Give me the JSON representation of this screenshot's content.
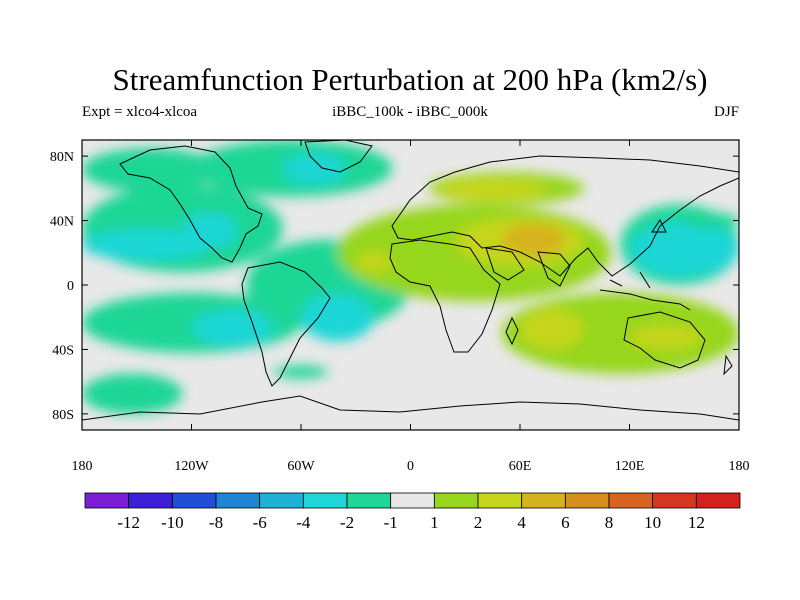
{
  "chart_data": {
    "type": "heatmap",
    "title": "Streamfunction Perturbation at 200 hPa (km2/s)",
    "left_label": "Expt = xlco4-xlcoa",
    "center_label": "iBBC_100k - iBBC_000k",
    "right_label": "DJF",
    "projection": "cylindrical-equidistant",
    "xlim": [
      -180,
      180
    ],
    "ylim": [
      -90,
      90
    ],
    "x_ticks": [
      {
        "value": -180,
        "label": "180"
      },
      {
        "value": -120,
        "label": "120W"
      },
      {
        "value": -60,
        "label": "60W"
      },
      {
        "value": 0,
        "label": "0"
      },
      {
        "value": 60,
        "label": "60E"
      },
      {
        "value": 120,
        "label": "120E"
      },
      {
        "value": 180,
        "label": "180"
      }
    ],
    "y_ticks": [
      {
        "value": 80,
        "label": "80N"
      },
      {
        "value": 40,
        "label": "40N"
      },
      {
        "value": 0,
        "label": "0"
      },
      {
        "value": -40,
        "label": "40S"
      },
      {
        "value": -80,
        "label": "80S"
      }
    ],
    "colorbar": {
      "colors": [
        "#7a1fd6",
        "#3a1fd6",
        "#1f4fd6",
        "#1f86d6",
        "#1fb2d6",
        "#1fd6d6",
        "#1fd696",
        "#e8e8e8",
        "#96d61f",
        "#c6d61f",
        "#d6b21f",
        "#d68f1f",
        "#d6631f",
        "#d6361f",
        "#d61f1f"
      ],
      "tick_labels": [
        "-12",
        "-10",
        "-8",
        "-6",
        "-4",
        "-2",
        "-1",
        "1",
        "2",
        "4",
        "6",
        "8",
        "10",
        "12"
      ]
    },
    "contour_regions": [
      {
        "level": -1,
        "color": "#1fd696",
        "lon": [
          -180,
          -105
        ],
        "lat": [
          85,
          58
        ]
      },
      {
        "level": -1,
        "color": "#1fd696",
        "lon": [
          -120,
          -10
        ],
        "lat": [
          90,
          55
        ]
      },
      {
        "level": -2,
        "color": "#1fd6d6",
        "lon": [
          -70,
          -35
        ],
        "lat": [
          82,
          62
        ]
      },
      {
        "level": -1,
        "color": "#1fd696",
        "lon": [
          -180,
          -70
        ],
        "lat": [
          62,
          8
        ]
      },
      {
        "level": -2,
        "color": "#1fd6d6",
        "lon": [
          -180,
          -110
        ],
        "lat": [
          35,
          15
        ]
      },
      {
        "level": -2,
        "color": "#1fd6d6",
        "lon": [
          -125,
          -95
        ],
        "lat": [
          45,
          22
        ]
      },
      {
        "level": -1,
        "color": "#1fd696",
        "lon": [
          -90,
          0
        ],
        "lat": [
          28,
          -28
        ]
      },
      {
        "level": -1,
        "color": "#1fd696",
        "lon": [
          -180,
          -60
        ],
        "lat": [
          -5,
          -42
        ]
      },
      {
        "level": -2,
        "color": "#1fd6d6",
        "lon": [
          -120,
          -75
        ],
        "lat": [
          -15,
          -38
        ]
      },
      {
        "level": -2,
        "color": "#1fd6d6",
        "lon": [
          -60,
          -20
        ],
        "lat": [
          -5,
          -35
        ]
      },
      {
        "level": -1,
        "color": "#1fd696",
        "lon": [
          -180,
          -125
        ],
        "lat": [
          -55,
          -80
        ]
      },
      {
        "level": -1,
        "color": "#1fd696",
        "lon": [
          -75,
          -45
        ],
        "lat": [
          -50,
          -58
        ]
      },
      {
        "level": 1,
        "color": "#96d61f",
        "lon": [
          10,
          95
        ],
        "lat": [
          70,
          50
        ]
      },
      {
        "level": 2,
        "color": "#c6d61f",
        "lon": [
          15,
          75
        ],
        "lat": [
          66,
          52
        ]
      },
      {
        "level": 1,
        "color": "#96d61f",
        "lon": [
          -40,
          110
        ],
        "lat": [
          50,
          -10
        ]
      },
      {
        "level": 2,
        "color": "#c6d61f",
        "lon": [
          25,
          95
        ],
        "lat": [
          42,
          12
        ]
      },
      {
        "level": 4,
        "color": "#d6b21f",
        "lon": [
          50,
          85
        ],
        "lat": [
          38,
          18
        ]
      },
      {
        "level": 2,
        "color": "#c6d61f",
        "lon": [
          -30,
          -10
        ],
        "lat": [
          20,
          8
        ]
      },
      {
        "level": 1,
        "color": "#96d61f",
        "lon": [
          50,
          180
        ],
        "lat": [
          -5,
          -55
        ]
      },
      {
        "level": 2,
        "color": "#c6d61f",
        "lon": [
          60,
          95
        ],
        "lat": [
          -15,
          -40
        ]
      },
      {
        "level": 2,
        "color": "#c6d61f",
        "lon": [
          120,
          160
        ],
        "lat": [
          -25,
          -40
        ]
      },
      {
        "level": -1,
        "color": "#1fd696",
        "lon": [
          115,
          180
        ],
        "lat": [
          50,
          0
        ]
      },
      {
        "level": -2,
        "color": "#1fd6d6",
        "lon": [
          120,
          180
        ],
        "lat": [
          40,
          5
        ]
      },
      {
        "level": -1,
        "color": "#1fd696",
        "lon": [
          150,
          180
        ],
        "lat": [
          45,
          35
        ]
      }
    ]
  }
}
